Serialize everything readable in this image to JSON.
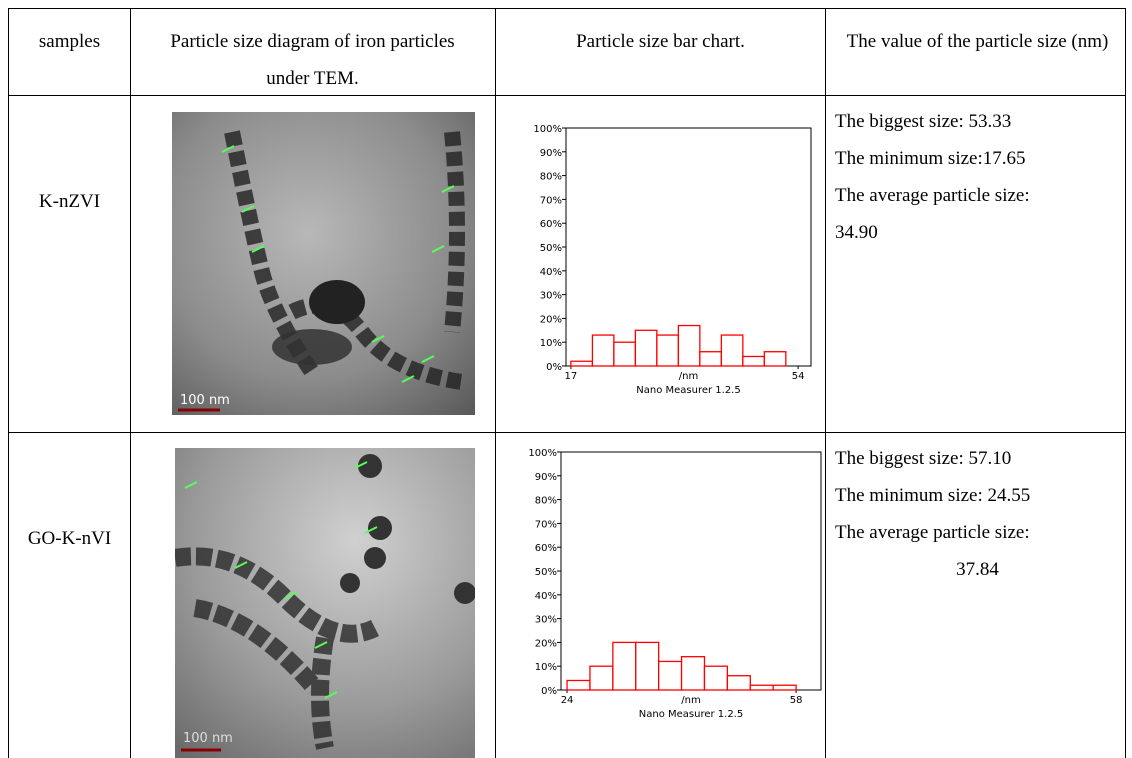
{
  "table": {
    "header": [
      "samples",
      "Particle size diagram of iron particles under TEM.",
      "Particle size bar chart.",
      "The value of the particle size (nm)"
    ],
    "rows": [
      {
        "sample": "K-nZVI",
        "image_scale": "100 nm",
        "histogram": {
          "type": "histogram",
          "bins": [
            17,
            20.5,
            24,
            27.5,
            31,
            34.5,
            38,
            41.5,
            45,
            48.5,
            52
          ],
          "values": [
            2,
            13,
            10,
            15,
            13,
            17,
            6,
            13,
            4,
            6
          ],
          "color": "#ff0000",
          "xlim": [
            16.2,
            56.1
          ],
          "xticks": [
            17,
            54
          ],
          "ylim": [
            0,
            100
          ],
          "yticks": [
            {
              "value": 0,
              "label": "0%"
            },
            {
              "value": 10,
              "label": "10%"
            },
            {
              "value": 20,
              "label": "20%"
            },
            {
              "value": 30,
              "label": "30%"
            },
            {
              "value": 40,
              "label": "40%"
            },
            {
              "value": 50,
              "label": "50%"
            },
            {
              "value": 60,
              "label": "60%"
            },
            {
              "value": 70,
              "label": "70%"
            },
            {
              "value": 80,
              "label": "80%"
            },
            {
              "value": 90,
              "label": "90%"
            },
            {
              "value": 100,
              "label": "100%"
            }
          ],
          "xlabel": "/nm",
          "footer": "Nano Measurer 1.2.5"
        },
        "values": [
          "The biggest size: 53.33",
          "The minimum size:17.65",
          "The average particle size:",
          "34.90"
        ]
      },
      {
        "sample": "GO-K-nVI",
        "image_scale": "100 nm",
        "histogram": {
          "type": "histogram",
          "bins": [
            24,
            27.4,
            30.8,
            34.2,
            37.6,
            41,
            44.4,
            47.8,
            51.2,
            54.6,
            58
          ],
          "values": [
            4,
            10,
            20,
            20,
            12,
            14,
            10,
            6,
            2,
            2
          ],
          "color": "#ff0000",
          "xlim": [
            23.1,
            61.7
          ],
          "xticks": [
            24,
            58
          ],
          "ylim": [
            0,
            100
          ],
          "yticks": [
            {
              "value": 0,
              "label": "0%"
            },
            {
              "value": 10,
              "label": "10%"
            },
            {
              "value": 20,
              "label": "20%"
            },
            {
              "value": 30,
              "label": "30%"
            },
            {
              "value": 40,
              "label": "40%"
            },
            {
              "value": 50,
              "label": "50%"
            },
            {
              "value": 60,
              "label": "60%"
            },
            {
              "value": 70,
              "label": "70%"
            },
            {
              "value": 80,
              "label": "80%"
            },
            {
              "value": 90,
              "label": "90%"
            },
            {
              "value": 100,
              "label": "100%"
            }
          ],
          "xlabel": "/nm",
          "footer": "Nano Measurer 1.2.5"
        },
        "values": [
          "The biggest size: 57.10",
          "The minimum size: 24.55",
          "The average particle size:",
          "37.84"
        ]
      }
    ]
  }
}
